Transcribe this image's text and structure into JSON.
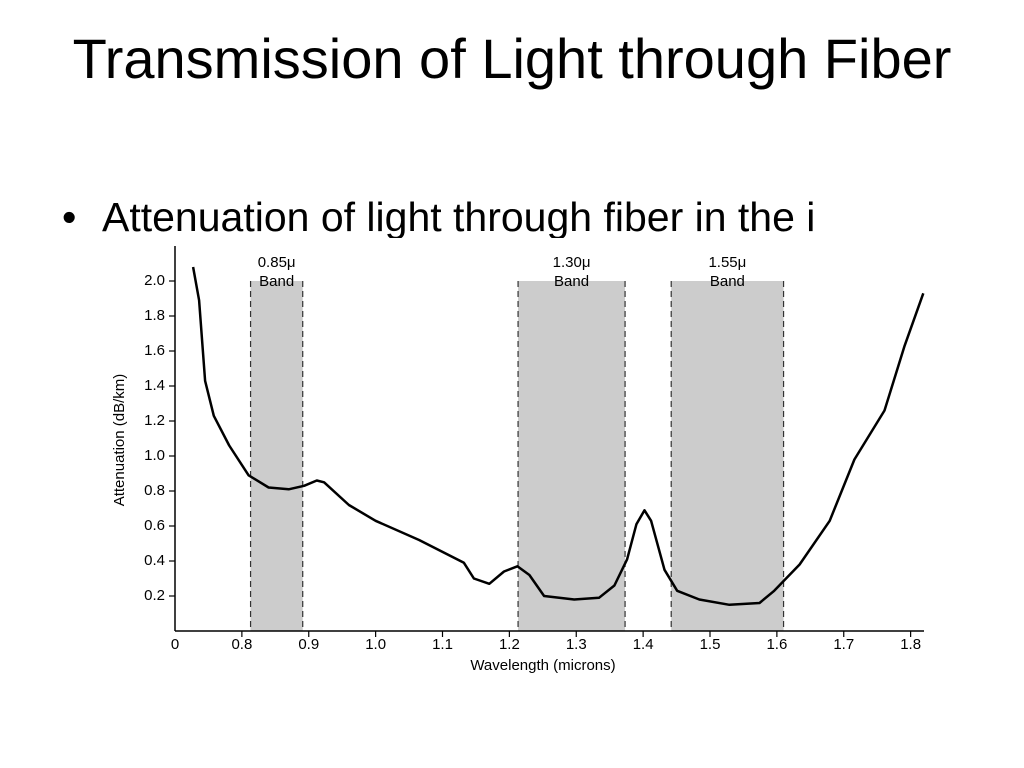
{
  "slide": {
    "title": "Transmission of Light through Fiber",
    "bullets": [
      "Attenuation of light through fiber in the i"
    ]
  },
  "chart_data": {
    "type": "line",
    "x_label": "Wavelength (microns)",
    "y_label": "Attenuation (dB/km)",
    "x_start_label": "0",
    "xlim": [
      0.7,
      1.82
    ],
    "xticks": [
      0.8,
      0.9,
      {
        "value": 1.0,
        "label": "1.0"
      },
      1.1,
      1.2,
      1.3,
      1.4,
      1.5,
      1.6,
      1.7,
      1.8
    ],
    "ylim": [
      0,
      2.2
    ],
    "yticks": [
      0.2,
      0.4,
      0.6,
      0.8,
      {
        "value": 1.0,
        "label": "1.0"
      },
      1.2,
      1.4,
      1.6,
      1.8,
      {
        "value": 2.0,
        "label": "2.0"
      }
    ],
    "bands": [
      {
        "lines": [
          "0.85μ",
          "Band"
        ],
        "start": 0.813,
        "end": 0.891
      },
      {
        "lines": [
          "1.30μ",
          "Band"
        ],
        "start": 1.213,
        "end": 1.373
      },
      {
        "lines": [
          "1.55μ",
          "Band"
        ],
        "start": 1.442,
        "end": 1.61
      }
    ],
    "band_color": "#cccccc",
    "series": [
      {
        "color": "#000000",
        "x": [
          0.727,
          0.736,
          0.745,
          0.758,
          0.781,
          0.81,
          0.84,
          0.87,
          0.893,
          0.912,
          0.923,
          0.96,
          1.0,
          1.065,
          1.132,
          1.147,
          1.17,
          1.192,
          1.212,
          1.23,
          1.252,
          1.297,
          1.334,
          1.357,
          1.376,
          1.39,
          1.402,
          1.412,
          1.432,
          1.451,
          1.484,
          1.529,
          1.574,
          1.596,
          1.634,
          1.679,
          1.716,
          1.761,
          1.791,
          1.819
        ],
        "values": [
          2.08,
          1.89,
          1.43,
          1.23,
          1.06,
          0.89,
          0.82,
          0.81,
          0.83,
          0.86,
          0.85,
          0.72,
          0.63,
          0.52,
          0.39,
          0.3,
          0.27,
          0.34,
          0.37,
          0.32,
          0.2,
          0.18,
          0.19,
          0.26,
          0.41,
          0.61,
          0.69,
          0.63,
          0.35,
          0.23,
          0.18,
          0.15,
          0.16,
          0.23,
          0.38,
          0.63,
          0.98,
          1.26,
          1.63,
          1.93
        ]
      }
    ]
  }
}
